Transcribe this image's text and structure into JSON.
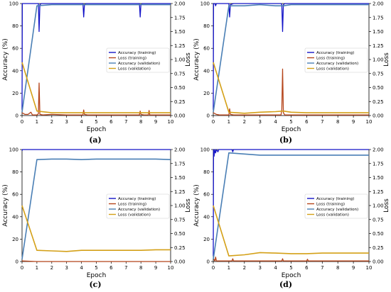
{
  "axis_labels": {
    "y_left": "Accuracy (%)",
    "y_right": "Loss",
    "x": "Epoch"
  },
  "y_left_ticks": [
    0,
    20,
    40,
    60,
    80,
    100
  ],
  "y_right_ticks": [
    "0.00",
    "0.25",
    "0.50",
    "0.75",
    "1.00",
    "1.25",
    "1.50",
    "1.75",
    "2.00"
  ],
  "x_ticks": [
    0,
    1,
    2,
    3,
    4,
    5,
    6,
    7,
    8,
    9,
    10
  ],
  "legend": [
    "Accuracy (training)",
    "Loss (training)",
    "Accuracy (validation)",
    "Loss (validation)"
  ],
  "colors": {
    "acc_training": "#1515c8",
    "loss_training": "#b5451b",
    "acc_validation": "#4a7fb5",
    "loss_validation": "#d4a017"
  },
  "captions": [
    "(a)",
    "(b)",
    "(c)",
    "(d)"
  ],
  "chart_data": [
    {
      "type": "line",
      "xlabel": "Epoch",
      "ylabel": "Accuracy (%)",
      "y2label": "Loss",
      "xlim": [
        0,
        10
      ],
      "ylim": [
        0,
        100
      ],
      "y2lim": [
        0,
        2
      ],
      "legend_position": "right",
      "series": [
        {
          "name": "Accuracy (training)",
          "axis": "left",
          "x": [
            0,
            0.02,
            0.05,
            1.0,
            1.1,
            1.15,
            1.2,
            1.3,
            4.1,
            4.15,
            4.2,
            4.3,
            7.9,
            7.95,
            8.0,
            8.1,
            10
          ],
          "y": [
            5,
            100,
            100,
            100,
            100,
            75,
            99,
            100,
            100,
            88,
            99,
            100,
            100,
            88,
            99,
            100,
            100
          ]
        },
        {
          "name": "Loss (training)",
          "axis": "right",
          "x": [
            0,
            0.2,
            0.4,
            0.6,
            0.7,
            1.0,
            1.1,
            1.15,
            1.2,
            1.4,
            2,
            3,
            4.1,
            4.15,
            4.2,
            4.4,
            6,
            7.9,
            7.95,
            8.0,
            8.2,
            8.5,
            8.55,
            8.6,
            10
          ],
          "y": [
            0.05,
            0.02,
            0.02,
            0.06,
            0.01,
            0.01,
            0.03,
            0.58,
            0.02,
            0.01,
            0.02,
            0.01,
            0.01,
            0.1,
            0.02,
            0.01,
            0.01,
            0.01,
            0.08,
            0.02,
            0.01,
            0.01,
            0.09,
            0.01,
            0.01
          ]
        },
        {
          "name": "Accuracy (validation)",
          "axis": "left",
          "x": [
            0,
            1,
            2,
            3,
            4,
            5,
            6,
            7,
            8,
            9,
            10
          ],
          "y": [
            3,
            98,
            99,
            99,
            99,
            99,
            99,
            99,
            99,
            99,
            99
          ]
        },
        {
          "name": "Loss (validation)",
          "axis": "right",
          "x": [
            0,
            1,
            2,
            3,
            4,
            5,
            6,
            7,
            8,
            9,
            10
          ],
          "y": [
            0.95,
            0.08,
            0.05,
            0.05,
            0.05,
            0.05,
            0.05,
            0.05,
            0.05,
            0.05,
            0.05
          ]
        }
      ]
    },
    {
      "type": "line",
      "xlabel": "Epoch",
      "ylabel": "Accuracy (%)",
      "y2label": "Loss",
      "xlim": [
        0,
        10
      ],
      "ylim": [
        0,
        100
      ],
      "y2lim": [
        0,
        2
      ],
      "legend_position": "right",
      "series": [
        {
          "name": "Accuracy (training)",
          "axis": "left",
          "x": [
            0,
            0.02,
            0.1,
            0.15,
            0.2,
            0.9,
            1.0,
            1.05,
            1.1,
            1.3,
            4.35,
            4.4,
            4.45,
            4.5,
            4.6,
            10
          ],
          "y": [
            5,
            100,
            100,
            98,
            100,
            100,
            100,
            88,
            99,
            100,
            100,
            99,
            75,
            99,
            100,
            100
          ]
        },
        {
          "name": "Loss (training)",
          "axis": "right",
          "x": [
            0,
            0.2,
            0.4,
            1.0,
            1.05,
            1.1,
            1.3,
            2,
            4.35,
            4.4,
            4.45,
            4.5,
            4.6,
            10
          ],
          "y": [
            0.05,
            0.02,
            0.01,
            0.01,
            0.12,
            0.02,
            0.01,
            0.01,
            0.01,
            0.1,
            0.83,
            0.05,
            0.01,
            0.01
          ]
        },
        {
          "name": "Accuracy (validation)",
          "axis": "left",
          "x": [
            0,
            1,
            2,
            3,
            4,
            4.5,
            5,
            6,
            7,
            8,
            9,
            10
          ],
          "y": [
            3,
            98,
            98,
            99,
            98,
            98,
            99,
            99,
            99,
            99,
            99,
            99
          ]
        },
        {
          "name": "Loss (validation)",
          "axis": "right",
          "x": [
            0,
            1,
            2,
            3,
            4,
            4.5,
            5,
            6,
            7,
            8,
            9,
            10
          ],
          "y": [
            0.95,
            0.06,
            0.04,
            0.06,
            0.07,
            0.08,
            0.06,
            0.05,
            0.05,
            0.05,
            0.05,
            0.05
          ]
        }
      ]
    },
    {
      "type": "line",
      "xlabel": "Epoch",
      "ylabel": "Accuracy (%)",
      "y2label": "Loss",
      "xlim": [
        0,
        10
      ],
      "ylim": [
        0,
        100
      ],
      "y2lim": [
        0,
        2
      ],
      "legend_position": "right",
      "series": [
        {
          "name": "Accuracy (training)",
          "axis": "left",
          "x": [
            0,
            0.03,
            10
          ],
          "y": [
            99,
            100,
            100
          ]
        },
        {
          "name": "Loss (training)",
          "axis": "right",
          "x": [
            0,
            1,
            2,
            3,
            4,
            5,
            6,
            7,
            8,
            9,
            10
          ],
          "y": [
            0.01,
            0.0,
            0.0,
            0.0,
            0.0,
            0.0,
            0.0,
            0.0,
            0.0,
            0.0,
            0.0
          ]
        },
        {
          "name": "Accuracy (validation)",
          "axis": "left",
          "x": [
            0,
            1,
            2,
            3,
            4,
            5,
            6,
            7,
            8,
            9,
            10
          ],
          "y": [
            2,
            91,
            91.5,
            91.5,
            91,
            91.5,
            91.5,
            91.5,
            91.5,
            91.5,
            91
          ]
        },
        {
          "name": "Loss (validation)",
          "axis": "right",
          "x": [
            0,
            1,
            2,
            3,
            4,
            5,
            6,
            7,
            8,
            9,
            10
          ],
          "y": [
            1.0,
            0.2,
            0.19,
            0.18,
            0.2,
            0.2,
            0.2,
            0.2,
            0.2,
            0.21,
            0.21
          ]
        }
      ]
    },
    {
      "type": "line",
      "xlabel": "Epoch",
      "ylabel": "Accuracy (%)",
      "y2label": "Loss",
      "xlim": [
        0,
        10
      ],
      "ylim": [
        0,
        100
      ],
      "y2lim": [
        0,
        2
      ],
      "legend_position": "right",
      "series": [
        {
          "name": "Accuracy (training)",
          "axis": "left",
          "x": [
            0,
            0.02,
            0.05,
            0.1,
            0.15,
            0.2,
            0.3,
            0.35,
            0.4,
            1.2,
            1.25,
            1.3,
            10
          ],
          "y": [
            5,
            100,
            94,
            100,
            97,
            100,
            98,
            100,
            100,
            100,
            98,
            100,
            100
          ]
        },
        {
          "name": "Loss (training)",
          "axis": "right",
          "x": [
            0,
            0.1,
            0.15,
            0.2,
            0.3,
            1.2,
            1.25,
            1.3,
            4.4,
            4.45,
            4.5,
            6.0,
            6.05,
            6.1,
            10
          ],
          "y": [
            0.06,
            0.01,
            0.08,
            0.01,
            0.01,
            0.01,
            0.05,
            0.01,
            0.01,
            0.05,
            0.01,
            0.01,
            0.04,
            0.01,
            0.01
          ]
        },
        {
          "name": "Accuracy (validation)",
          "axis": "left",
          "x": [
            0,
            1,
            2,
            3,
            4,
            5,
            6,
            7,
            8,
            9,
            10
          ],
          "y": [
            2,
            97,
            96,
            95,
            95,
            95,
            95,
            95,
            95,
            95,
            95
          ]
        },
        {
          "name": "Loss (validation)",
          "axis": "right",
          "x": [
            0,
            1,
            2,
            3,
            4,
            5,
            6,
            7,
            8,
            9,
            10
          ],
          "y": [
            1.0,
            0.1,
            0.12,
            0.16,
            0.15,
            0.14,
            0.14,
            0.15,
            0.15,
            0.15,
            0.15
          ]
        }
      ]
    }
  ]
}
